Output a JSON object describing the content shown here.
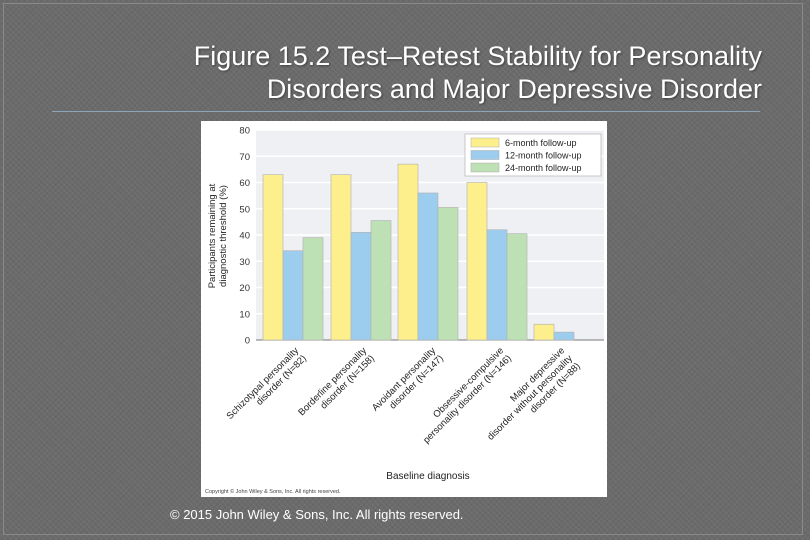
{
  "slide": {
    "title_line1": "Figure 15.2 Test–Retest Stability for Personality",
    "title_line2": "Disorders and Major Depressive Disorder",
    "footer": "© 2015 John Wiley & Sons, Inc. All rights reserved."
  },
  "chart_data": {
    "type": "bar",
    "ylabel_line1": "Participants remaining at",
    "ylabel_line2": "diagnostic threshold (%)",
    "xlabel": "Baseline diagnosis",
    "copyright": "Copyright © John Wiley & Sons, Inc. All rights reserved.",
    "ylim": [
      0,
      80
    ],
    "yticks": [
      "80",
      "70",
      "60",
      "50",
      "40",
      "30",
      "20",
      "10",
      "0"
    ],
    "grid": true,
    "legend_position": "top-right",
    "categories": [
      [
        "Schizotypal personality",
        "disorder (N=82)"
      ],
      [
        "Borderline personality",
        "disorder (N=158)"
      ],
      [
        "Avoidant personality",
        "disorder (N=147)"
      ],
      [
        "Obsessive-compulsive",
        "personality disorder (N=146)"
      ],
      [
        "Major depressive",
        "disorder without personality",
        "disorder (N=88)"
      ]
    ],
    "series": [
      {
        "name": "6-month follow-up",
        "color": "#fdf08c",
        "values": [
          63,
          63,
          67,
          60,
          6
        ]
      },
      {
        "name": "12-month follow-up",
        "color": "#9ccdef",
        "values": [
          34,
          41,
          56,
          42,
          3
        ]
      },
      {
        "name": "24-month follow-up",
        "color": "#bde0b4",
        "values": [
          39,
          45.5,
          50.5,
          40.5,
          null
        ]
      }
    ],
    "colors": {
      "plot_bg": "#eef0f4",
      "grid": "#ffffff",
      "bar_stroke": "#b0b0b0"
    }
  }
}
